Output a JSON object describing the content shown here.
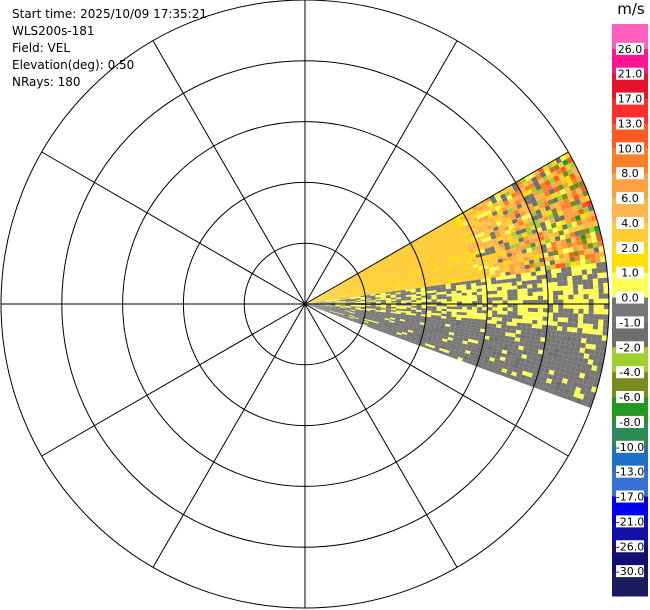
{
  "info": {
    "start_time": "Start time: 2025/10/09 17:35:21",
    "instrument": "WLS200s-181",
    "field": "Field: VEL",
    "elevation": "Elevation(deg): 0.50",
    "nrays": "NRays: 180"
  },
  "chart_data": {
    "type": "heatmap",
    "projection": "polar-ppi",
    "title": "",
    "range_rings": 5,
    "radial_spokes_deg": [
      0,
      30,
      60,
      90,
      120,
      150,
      180,
      210,
      240,
      270,
      300,
      330
    ],
    "sector_azimuth_deg": [
      60,
      110
    ],
    "sector_range_fraction": [
      0,
      1
    ],
    "gradient_summary": [
      {
        "azimuth_range": [
          60,
          72
        ],
        "dominant_value": 3.0,
        "note": "near-range positive, noisy at far range"
      },
      {
        "azimuth_range": [
          72,
          82
        ],
        "dominant_value": 2.5,
        "note": "positive near range, noisy far range"
      },
      {
        "azimuth_range": [
          82,
          96
        ],
        "dominant_value": 0.0,
        "note": "near-zero band"
      },
      {
        "azimuth_range": [
          96,
          110
        ],
        "dominant_value": -0.5,
        "note": "near-zero to slightly negative"
      },
      {
        "azimuth_range": [
          104,
          110
        ],
        "dominant_value": -1.5,
        "note": "near-range negative"
      }
    ],
    "colorbar": {
      "unit": "m/s",
      "labels": [
        "26.0",
        "21.0",
        "17.0",
        "13.0",
        "10.0",
        "8.0",
        "6.0",
        "4.0",
        "2.0",
        "1.0",
        "0.0",
        "-1.0",
        "-2.0",
        "-4.0",
        "-6.0",
        "-8.0",
        "-10.0",
        "-13.0",
        "-17.0",
        "-21.0",
        "-26.0",
        "-30.0"
      ],
      "colors": [
        "#ff5fbf",
        "#ff1493",
        "#e8122a",
        "#ff2d2d",
        "#ff5a1f",
        "#ff7f28",
        "#ffa040",
        "#ffb64a",
        "#ffcc33",
        "#ffe000",
        "#ffff55",
        "#777777",
        "#6f6f6f",
        "#a0d030",
        "#7a8b20",
        "#229922",
        "#2e8b57",
        "#1f6fc8",
        "#3a6fd8",
        "#0000ee",
        "#1111aa",
        "#101070",
        "#1a1a60"
      ]
    }
  }
}
